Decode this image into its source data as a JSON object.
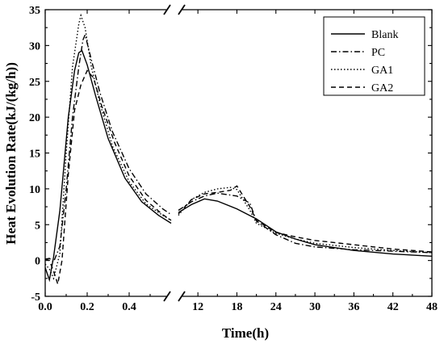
{
  "chart_data": {
    "type": "line",
    "xlabel": "Time(h)",
    "ylabel": "Heat Evolution Rate(kJ/(kg/h))",
    "ylim": [
      -5,
      35
    ],
    "y_ticks": [
      "-5",
      "0",
      "5",
      "10",
      "15",
      "20",
      "25",
      "30",
      "35"
    ],
    "x_axis_break": true,
    "x_segments": [
      {
        "range": [
          0.0,
          0.6
        ],
        "ticks": [
          "0.0",
          "0.2",
          "0.4"
        ]
      },
      {
        "range": [
          9,
          48
        ],
        "ticks": [
          "12",
          "18",
          "24",
          "30",
          "36",
          "42",
          "48"
        ]
      }
    ],
    "legend_position": "top-right",
    "series": [
      {
        "name": "Blank",
        "style": "solid",
        "seg1": [
          [
            0.0,
            -1.0
          ],
          [
            0.02,
            -2.7
          ],
          [
            0.04,
            0.5
          ],
          [
            0.07,
            7
          ],
          [
            0.11,
            20
          ],
          [
            0.14,
            26.5
          ],
          [
            0.16,
            29
          ],
          [
            0.175,
            29.3
          ],
          [
            0.2,
            27.3
          ],
          [
            0.24,
            23
          ],
          [
            0.3,
            17
          ],
          [
            0.38,
            11.5
          ],
          [
            0.46,
            8.2
          ],
          [
            0.54,
            6.3
          ],
          [
            0.6,
            5.2
          ]
        ],
        "seg2": [
          [
            9,
            6.7
          ],
          [
            11,
            7.8
          ],
          [
            13,
            8.6
          ],
          [
            15,
            8.3
          ],
          [
            18,
            7.2
          ],
          [
            21,
            5.8
          ],
          [
            24,
            4.0
          ],
          [
            27,
            3.0
          ],
          [
            30,
            2.2
          ],
          [
            36,
            1.4
          ],
          [
            42,
            0.9
          ],
          [
            48,
            0.6
          ]
        ]
      },
      {
        "name": "PC",
        "style": "dashdot",
        "seg1": [
          [
            0.0,
            0.2
          ],
          [
            0.02,
            0.3
          ],
          [
            0.04,
            -0.2
          ],
          [
            0.07,
            2
          ],
          [
            0.1,
            10
          ],
          [
            0.13,
            20
          ],
          [
            0.16,
            27
          ],
          [
            0.18,
            30.8
          ],
          [
            0.19,
            31.5
          ],
          [
            0.22,
            28
          ],
          [
            0.26,
            23.5
          ],
          [
            0.32,
            18
          ],
          [
            0.4,
            12.8
          ],
          [
            0.48,
            9.3
          ],
          [
            0.56,
            7.2
          ],
          [
            0.6,
            6.4
          ]
        ],
        "seg2": [
          [
            9,
            7.0
          ],
          [
            11,
            8.2
          ],
          [
            13,
            9.0
          ],
          [
            15,
            9.4
          ],
          [
            18,
            9.0
          ],
          [
            20,
            8.0
          ],
          [
            21,
            5.5
          ],
          [
            24,
            3.6
          ],
          [
            27,
            2.4
          ],
          [
            30,
            1.9
          ],
          [
            36,
            1.5
          ],
          [
            42,
            1.3
          ],
          [
            48,
            1.1
          ]
        ]
      },
      {
        "name": "GA1",
        "style": "dotted",
        "seg1": [
          [
            0.0,
            -0.5
          ],
          [
            0.02,
            -1.2
          ],
          [
            0.04,
            -2.5
          ],
          [
            0.07,
            1
          ],
          [
            0.1,
            15
          ],
          [
            0.13,
            27
          ],
          [
            0.16,
            33
          ],
          [
            0.17,
            34.2
          ],
          [
            0.19,
            32.5
          ],
          [
            0.22,
            27
          ],
          [
            0.26,
            22
          ],
          [
            0.32,
            16
          ],
          [
            0.4,
            11
          ],
          [
            0.48,
            7.9
          ],
          [
            0.56,
            6.3
          ],
          [
            0.6,
            5.6
          ]
        ],
        "seg2": [
          [
            9,
            6.3
          ],
          [
            11,
            8.5
          ],
          [
            13,
            9.5
          ],
          [
            15,
            10.0
          ],
          [
            17,
            10.2
          ],
          [
            18,
            9.9
          ],
          [
            20,
            7.0
          ],
          [
            21,
            5.2
          ],
          [
            24,
            3.8
          ],
          [
            27,
            3.0
          ],
          [
            30,
            2.4
          ],
          [
            36,
            1.8
          ],
          [
            42,
            1.4
          ],
          [
            48,
            1.1
          ]
        ]
      },
      {
        "name": "GA2",
        "style": "dashed",
        "seg1": [
          [
            0.0,
            0.2
          ],
          [
            0.02,
            0.0
          ],
          [
            0.04,
            -1.5
          ],
          [
            0.06,
            -3.3
          ],
          [
            0.08,
            0
          ],
          [
            0.11,
            12
          ],
          [
            0.14,
            21
          ],
          [
            0.17,
            24.5
          ],
          [
            0.2,
            26.5
          ],
          [
            0.23,
            25.5
          ],
          [
            0.27,
            21.5
          ],
          [
            0.33,
            16.5
          ],
          [
            0.4,
            11.8
          ],
          [
            0.48,
            8.4
          ],
          [
            0.56,
            6.4
          ],
          [
            0.6,
            5.6
          ]
        ],
        "seg2": [
          [
            9,
            6.5
          ],
          [
            11,
            8.5
          ],
          [
            13,
            9.3
          ],
          [
            15,
            9.5
          ],
          [
            17,
            9.8
          ],
          [
            18,
            10.4
          ],
          [
            20,
            7.5
          ],
          [
            21,
            5.6
          ],
          [
            24,
            3.9
          ],
          [
            27,
            3.3
          ],
          [
            30,
            2.8
          ],
          [
            36,
            2.2
          ],
          [
            42,
            1.6
          ],
          [
            48,
            1.2
          ]
        ]
      }
    ]
  }
}
